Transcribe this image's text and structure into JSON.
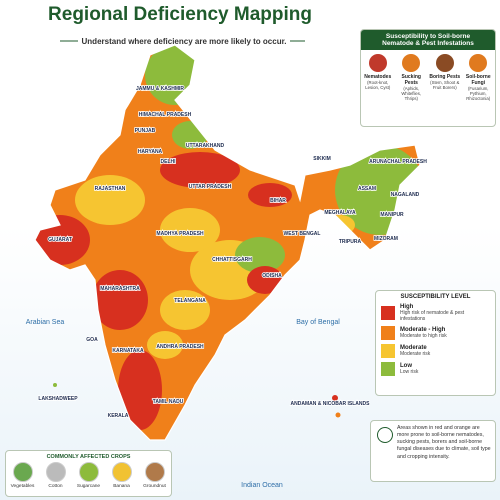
{
  "header": {
    "title": "Regional Deficiency Mapping",
    "subtitle": "Understand where deficiency are more likely to occur."
  },
  "pests": {
    "title": "Susceptibility to Soil-borne Nematode & Pest Infestations",
    "items": [
      {
        "name": "Nematodes",
        "desc": "(Root-knot, Lesion, Cyst)"
      },
      {
        "name": "Sucking Pests",
        "desc": "(Aphids, Whiteflies, Thrips)"
      },
      {
        "name": "Boring Pests",
        "desc": "(Stem, Shoot & Fruit Borers)"
      },
      {
        "name": "Soil-borne Fungi",
        "desc": "(Fusarium, Pythium, Rhizoctonia)"
      }
    ]
  },
  "map": {
    "labels": [
      "JAMMU & KASHMIR",
      "HIMACHAL PRADESH",
      "PUNJAB",
      "UTTARAKHAND",
      "HARYANA",
      "DELHI",
      "RAJASTHAN",
      "UTTAR PRADESH",
      "BIHAR",
      "SIKKIM",
      "ARUNACHAL PRADESH",
      "ASSAM",
      "NAGALAND",
      "MEGHALAYA",
      "MANIPUR",
      "TRIPURA",
      "MIZORAM",
      "WEST BENGAL",
      "MADHYA PRADESH",
      "GUJARAT",
      "CHHATTISGARH",
      "ODISHA",
      "MAHARASHTRA",
      "TELANGANA",
      "ANDHRA PRADESH",
      "GOA",
      "KARNATAKA",
      "KERALA",
      "TAMIL NADU",
      "LAKSHADWEEP",
      "ANDAMAN & NICOBAR ISLANDS"
    ],
    "seas": [
      "Arabian Sea",
      "Bay of Bengal",
      "Indian Ocean"
    ]
  },
  "legend": {
    "title": "SUSCEPTIBILITY LEVEL",
    "items": [
      {
        "label": "High",
        "desc": "High risk of nematode & pest infestations",
        "color": "#d7301f"
      },
      {
        "label": "Moderate - High",
        "desc": "Moderate to high risk",
        "color": "#f0801a"
      },
      {
        "label": "Moderate",
        "desc": "Moderate risk",
        "color": "#f6c531"
      },
      {
        "label": "Low",
        "desc": "Low risk",
        "color": "#8dbb3c"
      }
    ]
  },
  "note": "Areas shown in red and orange are more prone to soil-borne nematodes, sucking pests, borers and soil-borne fungal diseases due to climate, soil type and cropping intensity.",
  "crops": {
    "title": "COMMONLY AFFECTED CROPS",
    "items": [
      "Vegetables",
      "Cotton",
      "Sugarcane",
      "Banana",
      "Groundnut"
    ]
  }
}
